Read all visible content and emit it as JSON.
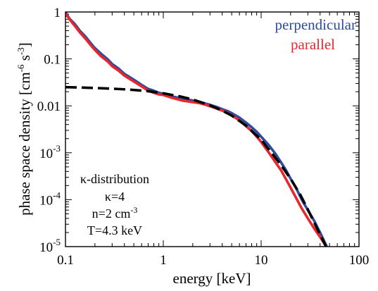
{
  "chart_data": {
    "type": "line",
    "title": "",
    "xlabel": "energy [keV]",
    "ylabel_parts": [
      "phase space density [cm",
      "-6",
      " s",
      "-3",
      "]"
    ],
    "xscale": "log",
    "yscale": "log",
    "xlim": [
      0.1,
      100
    ],
    "ylim": [
      1e-05,
      1
    ],
    "grid": false,
    "legend_position": "top-right",
    "x_ticks": [
      {
        "value": 0.1,
        "label": "0.1"
      },
      {
        "value": 1,
        "label": "1"
      },
      {
        "value": 10,
        "label": "10"
      },
      {
        "value": 100,
        "label": "100"
      }
    ],
    "y_ticks": [
      {
        "value": 1,
        "base": "1",
        "exp": ""
      },
      {
        "value": 0.1,
        "base": "0.1",
        "exp": ""
      },
      {
        "value": 0.01,
        "base": "0.01",
        "exp": ""
      },
      {
        "value": 0.001,
        "base": "10",
        "exp": "-3"
      },
      {
        "value": 0.0001,
        "base": "10",
        "exp": "-4"
      },
      {
        "value": 1e-05,
        "base": "10",
        "exp": "-5"
      }
    ],
    "series": [
      {
        "name": "perpendicular",
        "color": "#2f4b9c",
        "style": "solid",
        "x": [
          0.1,
          0.11,
          0.125,
          0.14,
          0.16,
          0.18,
          0.2,
          0.23,
          0.27,
          0.3,
          0.35,
          0.4,
          0.5,
          0.6,
          0.7,
          0.8,
          0.9,
          1.0,
          1.2,
          1.4,
          1.6,
          1.8,
          2.0,
          2.3,
          2.6,
          3.0,
          3.5,
          4.0,
          4.5,
          5.0,
          6.0,
          7.0,
          8.0,
          9.0,
          10,
          12,
          14,
          16,
          18,
          20,
          23,
          26,
          30,
          35,
          40,
          45,
          50
        ],
        "y": [
          1.0,
          0.72,
          0.55,
          0.4,
          0.3,
          0.22,
          0.17,
          0.13,
          0.098,
          0.078,
          0.062,
          0.048,
          0.036,
          0.028,
          0.023,
          0.021,
          0.019,
          0.018,
          0.016,
          0.015,
          0.014,
          0.0135,
          0.013,
          0.0122,
          0.0114,
          0.0105,
          0.0095,
          0.0085,
          0.0078,
          0.007,
          0.0056,
          0.0044,
          0.0035,
          0.0028,
          0.0022,
          0.00145,
          0.00095,
          0.00062,
          0.00042,
          0.00028,
          0.00017,
          0.0001,
          6e-05,
          3.5e-05,
          2e-05,
          1.2e-05,
          7.5e-06
        ]
      },
      {
        "name": "parallel",
        "color": "#e8262b",
        "style": "solid",
        "x": [
          0.1,
          0.11,
          0.125,
          0.14,
          0.16,
          0.18,
          0.2,
          0.23,
          0.27,
          0.3,
          0.35,
          0.4,
          0.5,
          0.6,
          0.7,
          0.8,
          0.9,
          1.0,
          1.2,
          1.4,
          1.6,
          1.8,
          2.0,
          2.3,
          2.6,
          3.0,
          3.5,
          4.0,
          4.5,
          5.0,
          6.0,
          7.0,
          8.0,
          9.0,
          10,
          12,
          14,
          16,
          18,
          20,
          23,
          26,
          30,
          35,
          40,
          45,
          48
        ],
        "y": [
          0.95,
          0.7,
          0.5,
          0.37,
          0.27,
          0.2,
          0.155,
          0.115,
          0.088,
          0.07,
          0.056,
          0.044,
          0.033,
          0.026,
          0.021,
          0.019,
          0.0175,
          0.017,
          0.015,
          0.0138,
          0.0128,
          0.0124,
          0.012,
          0.0115,
          0.0108,
          0.0098,
          0.0088,
          0.0079,
          0.0071,
          0.0063,
          0.0049,
          0.0037,
          0.0029,
          0.0022,
          0.0017,
          0.001,
          0.00063,
          0.00042,
          0.00027,
          0.00018,
          0.000105,
          6.5e-05,
          4e-05,
          2.4e-05,
          1.6e-05,
          1.1e-05,
          8.5e-06
        ]
      },
      {
        "name": "",
        "color": "#000000",
        "style": "dashed",
        "x": [
          0.1,
          0.15,
          0.2,
          0.3,
          0.4,
          0.5,
          0.7,
          1.0,
          1.5,
          2.0,
          3.0,
          4.0,
          5.0,
          7.0,
          10,
          15,
          20,
          25,
          30,
          35,
          40,
          45,
          50
        ],
        "y": [
          0.025,
          0.0245,
          0.024,
          0.0232,
          0.0225,
          0.0218,
          0.0205,
          0.0185,
          0.0158,
          0.0136,
          0.0103,
          0.0079,
          0.0062,
          0.0038,
          0.0019,
          0.00065,
          0.00028,
          0.00013,
          6.2e-05,
          3.2e-05,
          1.8e-05,
          1.1e-05,
          6.8e-06
        ]
      }
    ],
    "annotation_lines": [
      "κ-distribution",
      "κ=4",
      {
        "base": "n=2 cm",
        "exp": "-3"
      },
      "T=4.3 keV"
    ]
  }
}
